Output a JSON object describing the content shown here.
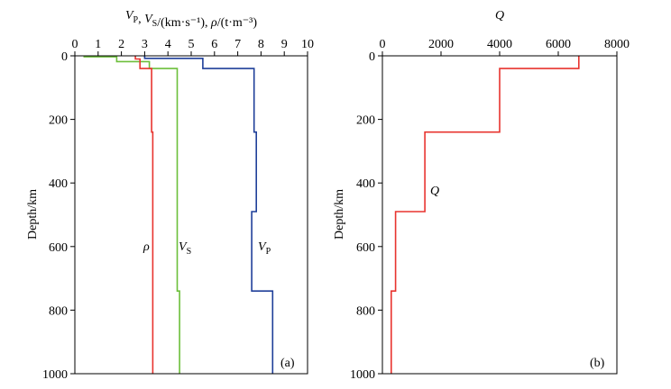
{
  "chart_data": [
    {
      "type": "line",
      "panel_label": "(a)",
      "xlabel": "V_P, V_S/(km·s⁻¹), ρ/(t·m⁻³)",
      "ylabel": "Depth/km",
      "xlim": [
        0,
        10
      ],
      "ylim": [
        0,
        1000
      ],
      "y_inverted": true,
      "x_axis_position": "top",
      "x_ticks": [
        0,
        1,
        2,
        3,
        4,
        5,
        6,
        7,
        8,
        9,
        10
      ],
      "y_ticks": [
        0,
        200,
        400,
        600,
        800,
        1000
      ],
      "grid": false,
      "series": [
        {
          "name": "V_P",
          "color": "#1f3f99",
          "points": [
            [
              3.0,
              0
            ],
            [
              3.0,
              3
            ],
            [
              3.0,
              8
            ],
            [
              5.5,
              8
            ],
            [
              5.5,
              40
            ],
            [
              7.7,
              40
            ],
            [
              7.7,
              240
            ],
            [
              7.8,
              240
            ],
            [
              7.8,
              490
            ],
            [
              7.6,
              490
            ],
            [
              7.6,
              740
            ],
            [
              8.5,
              740
            ],
            [
              8.5,
              1000
            ]
          ]
        },
        {
          "name": "V_S",
          "color": "#6cbf3a",
          "points": [
            [
              0.4,
              0
            ],
            [
              0.4,
              3
            ],
            [
              1.8,
              3
            ],
            [
              1.8,
              18
            ],
            [
              3.2,
              18
            ],
            [
              3.2,
              40
            ],
            [
              4.4,
              40
            ],
            [
              4.4,
              740
            ],
            [
              4.5,
              740
            ],
            [
              4.5,
              1000
            ]
          ]
        },
        {
          "name": "ρ",
          "color": "#e8342f",
          "points": [
            [
              2.6,
              0
            ],
            [
              2.6,
              10
            ],
            [
              2.8,
              10
            ],
            [
              2.8,
              40
            ],
            [
              3.3,
              40
            ],
            [
              3.3,
              240
            ],
            [
              3.35,
              240
            ],
            [
              3.35,
              1000
            ]
          ]
        }
      ]
    },
    {
      "type": "line",
      "panel_label": "(b)",
      "xlabel": "Q",
      "ylabel": "Depth/km",
      "xlim": [
        0,
        8000
      ],
      "ylim": [
        0,
        1000
      ],
      "y_inverted": true,
      "x_axis_position": "top",
      "x_ticks": [
        0,
        2000,
        4000,
        6000,
        8000
      ],
      "y_ticks": [
        0,
        200,
        400,
        600,
        800,
        1000
      ],
      "grid": false,
      "series": [
        {
          "name": "Q",
          "color": "#e8342f",
          "points": [
            [
              6700,
              0
            ],
            [
              6700,
              40
            ],
            [
              4000,
              40
            ],
            [
              4000,
              240
            ],
            [
              1450,
              240
            ],
            [
              1450,
              490
            ],
            [
              450,
              490
            ],
            [
              450,
              740
            ],
            [
              300,
              740
            ],
            [
              300,
              1000
            ]
          ]
        }
      ]
    }
  ]
}
